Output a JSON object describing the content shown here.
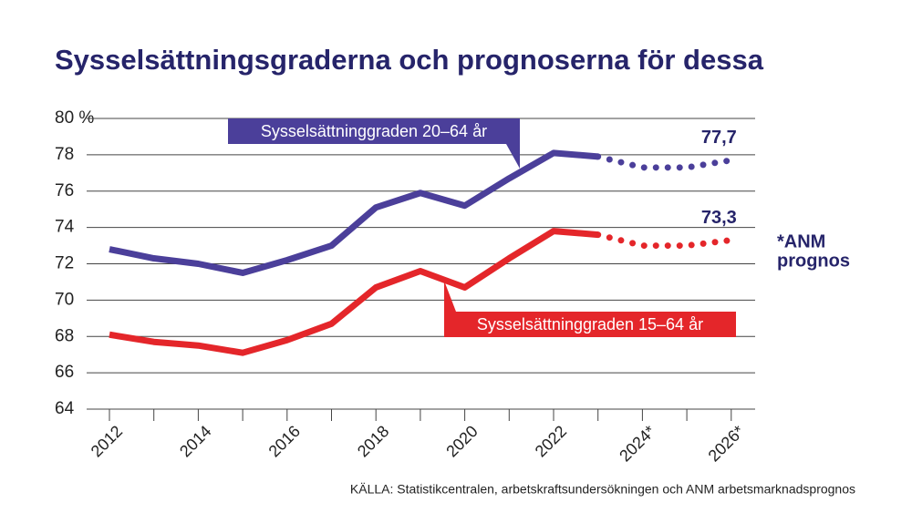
{
  "chart_data": {
    "type": "line",
    "title": "Sysselsättningsgraderna och prognoserna för dessa",
    "categories": [
      "2012",
      null,
      "2014",
      null,
      "2016",
      null,
      "2018",
      null,
      "2020",
      null,
      "2022",
      null,
      "2024*",
      null,
      "2026*"
    ],
    "series": [
      {
        "name": "Sysselsättninggraden 20–64 år",
        "color": "#4b3f9a",
        "values": [
          72.8,
          72.3,
          72.0,
          71.5,
          72.2,
          73.0,
          75.1,
          75.9,
          75.2,
          76.7,
          78.1,
          77.9,
          77.3,
          77.3,
          77.7
        ],
        "value_labels": [
          null,
          null,
          null,
          null,
          null,
          null,
          null,
          null,
          null,
          null,
          null,
          null,
          null,
          null,
          "77,7"
        ]
      },
      {
        "name": "Sysselsättninggraden 15–64 år",
        "color": "#e4262a",
        "values": [
          68.1,
          67.7,
          67.5,
          67.1,
          67.8,
          68.7,
          70.7,
          71.6,
          70.7,
          72.3,
          73.8,
          73.6,
          73.0,
          73.0,
          73.3
        ],
        "value_labels": [
          null,
          null,
          null,
          null,
          null,
          null,
          null,
          null,
          null,
          null,
          null,
          null,
          null,
          null,
          "73,3"
        ]
      }
    ],
    "forecast_start": 11,
    "ylim": [
      64,
      80
    ],
    "yticks": [
      64,
      66,
      68,
      70,
      72,
      74,
      76,
      78,
      {
        "value": 80,
        "label": "80 %"
      }
    ],
    "grid": true,
    "annotations": [
      "*ANM",
      "prognos"
    ],
    "source": "KÄLLA: Statistikcentralen, arbetskraftsundersökningen och ANM arbetsmarknadsprognos"
  }
}
